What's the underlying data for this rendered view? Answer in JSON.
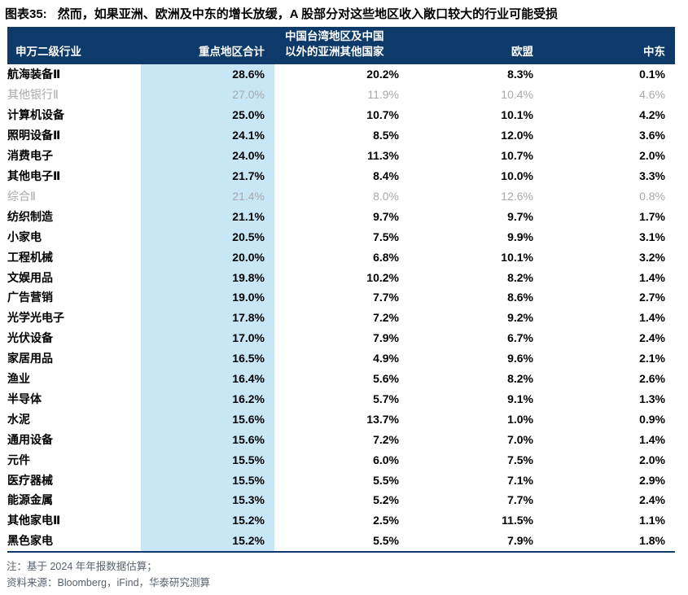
{
  "figure": {
    "caption_label": "图表35:",
    "caption_text": "然而，如果亚洲、欧洲及中东的增长放缓，A 股部分对这些地区收入敞口较大的行业可能受损"
  },
  "table": {
    "header": {
      "industry": "申万二级行业",
      "total": "重点地区合计",
      "asia_line1": "中国台湾地区及中国",
      "asia_line2": "以外的亚洲其他国家",
      "eu": "欧盟",
      "middle_east": "中东"
    },
    "rows": [
      {
        "industry": "航海装备Ⅱ",
        "total": "28.6%",
        "asia": "20.2%",
        "eu": "8.3%",
        "me": "0.1%",
        "muted": false
      },
      {
        "industry": "其他银行Ⅱ",
        "total": "27.0%",
        "asia": "11.9%",
        "eu": "10.4%",
        "me": "4.6%",
        "muted": true
      },
      {
        "industry": "计算机设备",
        "total": "25.0%",
        "asia": "10.7%",
        "eu": "10.1%",
        "me": "4.2%",
        "muted": false
      },
      {
        "industry": "照明设备Ⅱ",
        "total": "24.1%",
        "asia": "8.5%",
        "eu": "12.0%",
        "me": "3.6%",
        "muted": false
      },
      {
        "industry": "消费电子",
        "total": "24.0%",
        "asia": "11.3%",
        "eu": "10.7%",
        "me": "2.0%",
        "muted": false
      },
      {
        "industry": "其他电子Ⅱ",
        "total": "21.7%",
        "asia": "8.4%",
        "eu": "10.0%",
        "me": "3.3%",
        "muted": false
      },
      {
        "industry": "综合Ⅱ",
        "total": "21.4%",
        "asia": "8.0%",
        "eu": "12.6%",
        "me": "0.8%",
        "muted": true
      },
      {
        "industry": "纺织制造",
        "total": "21.1%",
        "asia": "9.7%",
        "eu": "9.7%",
        "me": "1.7%",
        "muted": false
      },
      {
        "industry": "小家电",
        "total": "20.5%",
        "asia": "7.5%",
        "eu": "9.9%",
        "me": "3.1%",
        "muted": false
      },
      {
        "industry": "工程机械",
        "total": "20.0%",
        "asia": "6.8%",
        "eu": "10.1%",
        "me": "3.2%",
        "muted": false
      },
      {
        "industry": "文娱用品",
        "total": "19.8%",
        "asia": "10.2%",
        "eu": "8.2%",
        "me": "1.4%",
        "muted": false
      },
      {
        "industry": "广告营销",
        "total": "19.0%",
        "asia": "7.7%",
        "eu": "8.6%",
        "me": "2.7%",
        "muted": false
      },
      {
        "industry": "光学光电子",
        "total": "17.8%",
        "asia": "7.2%",
        "eu": "9.2%",
        "me": "1.4%",
        "muted": false
      },
      {
        "industry": "光伏设备",
        "total": "17.0%",
        "asia": "7.9%",
        "eu": "6.7%",
        "me": "2.4%",
        "muted": false
      },
      {
        "industry": "家居用品",
        "total": "16.5%",
        "asia": "4.9%",
        "eu": "9.6%",
        "me": "2.1%",
        "muted": false
      },
      {
        "industry": "渔业",
        "total": "16.4%",
        "asia": "5.6%",
        "eu": "8.2%",
        "me": "2.6%",
        "muted": false
      },
      {
        "industry": "半导体",
        "total": "16.2%",
        "asia": "5.7%",
        "eu": "9.1%",
        "me": "1.3%",
        "muted": false
      },
      {
        "industry": "水泥",
        "total": "15.6%",
        "asia": "13.7%",
        "eu": "1.0%",
        "me": "0.9%",
        "muted": false
      },
      {
        "industry": "通用设备",
        "total": "15.6%",
        "asia": "7.2%",
        "eu": "7.0%",
        "me": "1.4%",
        "muted": false
      },
      {
        "industry": "元件",
        "total": "15.5%",
        "asia": "6.0%",
        "eu": "7.5%",
        "me": "2.0%",
        "muted": false
      },
      {
        "industry": "医疗器械",
        "total": "15.5%",
        "asia": "5.5%",
        "eu": "7.1%",
        "me": "2.9%",
        "muted": false
      },
      {
        "industry": "能源金属",
        "total": "15.3%",
        "asia": "5.2%",
        "eu": "7.7%",
        "me": "2.4%",
        "muted": false
      },
      {
        "industry": "其他家电Ⅱ",
        "total": "15.2%",
        "asia": "2.5%",
        "eu": "11.5%",
        "me": "1.1%",
        "muted": false
      },
      {
        "industry": "黑色家电",
        "total": "15.2%",
        "asia": "5.5%",
        "eu": "7.9%",
        "me": "1.8%",
        "muted": false
      }
    ]
  },
  "footnotes": {
    "note": "注：基于 2024 年年报数据估算；",
    "source": "资料来源：Bloomberg，iFind，华泰研究测算"
  },
  "colors": {
    "header_navy": "#0d3a68",
    "highlight_column": "#c8e7f6",
    "muted_text": "#a8a8a8",
    "note_text": "#57626e"
  },
  "chart_data": {
    "type": "table",
    "title": "图表35: 然而，如果亚洲、欧洲及中东的增长放缓，A 股部分对这些地区收入敞口较大的行业可能受损",
    "columns": [
      "申万二级行业",
      "重点地区合计",
      "中国台湾地区及中国以外的亚洲其他国家",
      "欧盟",
      "中东"
    ],
    "unit": "%",
    "rows": [
      [
        "航海装备Ⅱ",
        28.6,
        20.2,
        8.3,
        0.1
      ],
      [
        "其他银行Ⅱ",
        27.0,
        11.9,
        10.4,
        4.6
      ],
      [
        "计算机设备",
        25.0,
        10.7,
        10.1,
        4.2
      ],
      [
        "照明设备Ⅱ",
        24.1,
        8.5,
        12.0,
        3.6
      ],
      [
        "消费电子",
        24.0,
        11.3,
        10.7,
        2.0
      ],
      [
        "其他电子Ⅱ",
        21.7,
        8.4,
        10.0,
        3.3
      ],
      [
        "综合Ⅱ",
        21.4,
        8.0,
        12.6,
        0.8
      ],
      [
        "纺织制造",
        21.1,
        9.7,
        9.7,
        1.7
      ],
      [
        "小家电",
        20.5,
        7.5,
        9.9,
        3.1
      ],
      [
        "工程机械",
        20.0,
        6.8,
        10.1,
        3.2
      ],
      [
        "文娱用品",
        19.8,
        10.2,
        8.2,
        1.4
      ],
      [
        "广告营销",
        19.0,
        7.7,
        8.6,
        2.7
      ],
      [
        "光学光电子",
        17.8,
        7.2,
        9.2,
        1.4
      ],
      [
        "光伏设备",
        17.0,
        7.9,
        6.7,
        2.4
      ],
      [
        "家居用品",
        16.5,
        4.9,
        9.6,
        2.1
      ],
      [
        "渔业",
        16.4,
        5.6,
        8.2,
        2.6
      ],
      [
        "半导体",
        16.2,
        5.7,
        9.1,
        1.3
      ],
      [
        "水泥",
        15.6,
        13.7,
        1.0,
        0.9
      ],
      [
        "通用设备",
        15.6,
        7.2,
        7.0,
        1.4
      ],
      [
        "元件",
        15.5,
        6.0,
        7.5,
        2.0
      ],
      [
        "医疗器械",
        15.5,
        5.5,
        7.1,
        2.9
      ],
      [
        "能源金属",
        15.3,
        5.2,
        7.7,
        2.4
      ],
      [
        "其他家电Ⅱ",
        15.2,
        2.5,
        11.5,
        1.1
      ],
      [
        "黑色家电",
        15.2,
        5.5,
        7.9,
        1.8
      ]
    ],
    "notes": [
      "注：基于 2024 年年报数据估算；",
      "资料来源：Bloomberg，iFind，华泰研究测算"
    ]
  }
}
